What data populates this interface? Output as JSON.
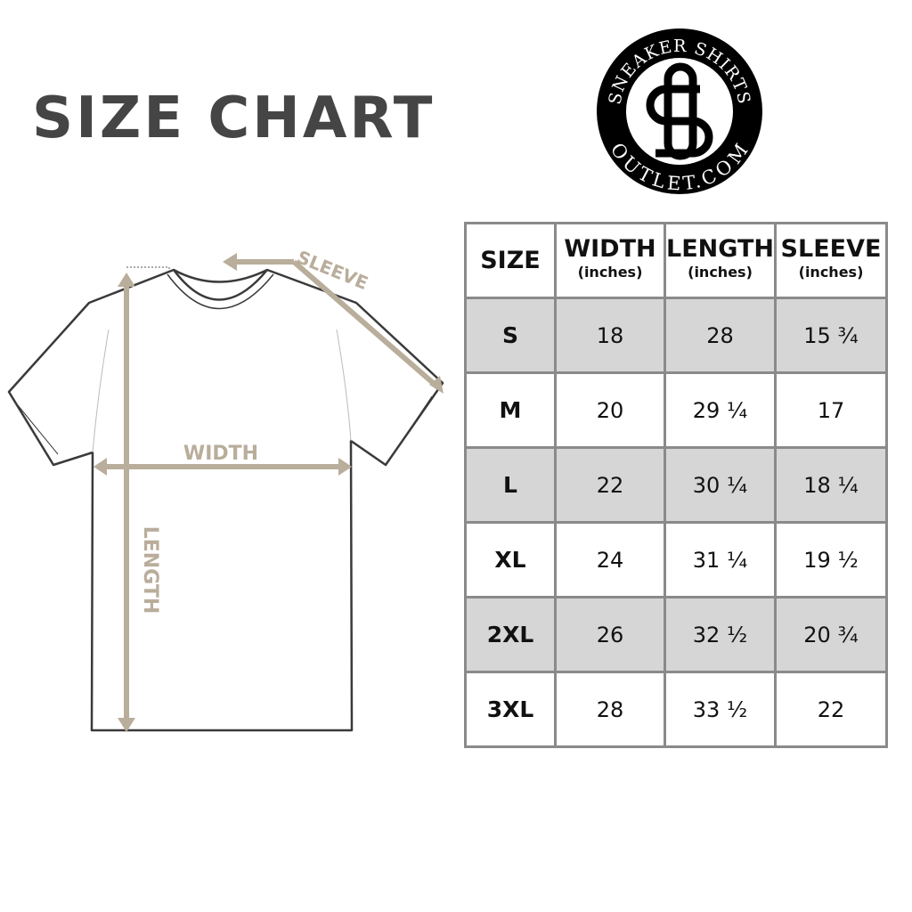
{
  "title": "SIZE CHART",
  "logo": {
    "top_text": "SNEAKER SHIRTS",
    "bottom_text": "OUTLET.COM",
    "monogram": "SS"
  },
  "diagram": {
    "sleeve_label": "SLEEVE",
    "width_label": "WIDTH",
    "length_label": "LENGTH",
    "accent_color": "#b9ad9b"
  },
  "table": {
    "headers": [
      {
        "label": "SIZE",
        "unit": ""
      },
      {
        "label": "WIDTH",
        "unit": "(inches)"
      },
      {
        "label": "LENGTH",
        "unit": "(inches)"
      },
      {
        "label": "SLEEVE",
        "unit": "(inches)"
      }
    ],
    "rows": [
      [
        "S",
        "18",
        "28",
        "15 ¾"
      ],
      [
        "M",
        "20",
        "29 ¼",
        "17"
      ],
      [
        "L",
        "22",
        "30 ¼",
        "18 ¼"
      ],
      [
        "XL",
        "24",
        "31 ¼",
        "19 ½"
      ],
      [
        "2XL",
        "26",
        "32 ½",
        "20 ¾"
      ],
      [
        "3XL",
        "28",
        "33 ½",
        "22"
      ]
    ]
  }
}
